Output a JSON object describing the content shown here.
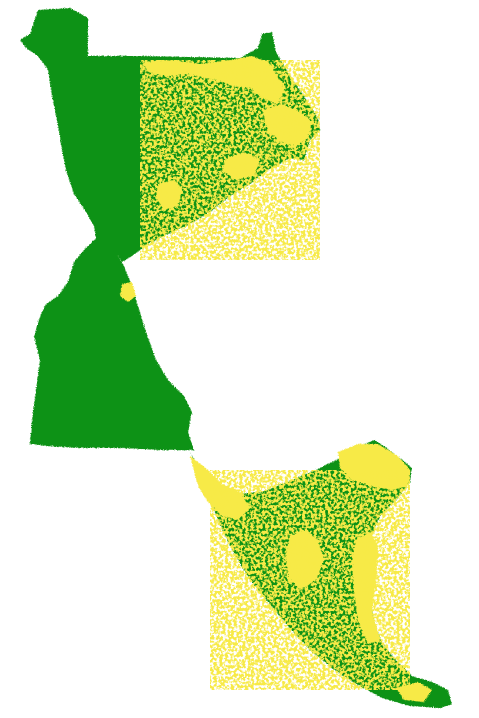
{
  "map": {
    "background_color": "#ffffff",
    "classes": [
      {
        "id": "green-class",
        "color": "#0e9213"
      },
      {
        "id": "yellow-class",
        "color": "#f7ea46"
      }
    ]
  }
}
